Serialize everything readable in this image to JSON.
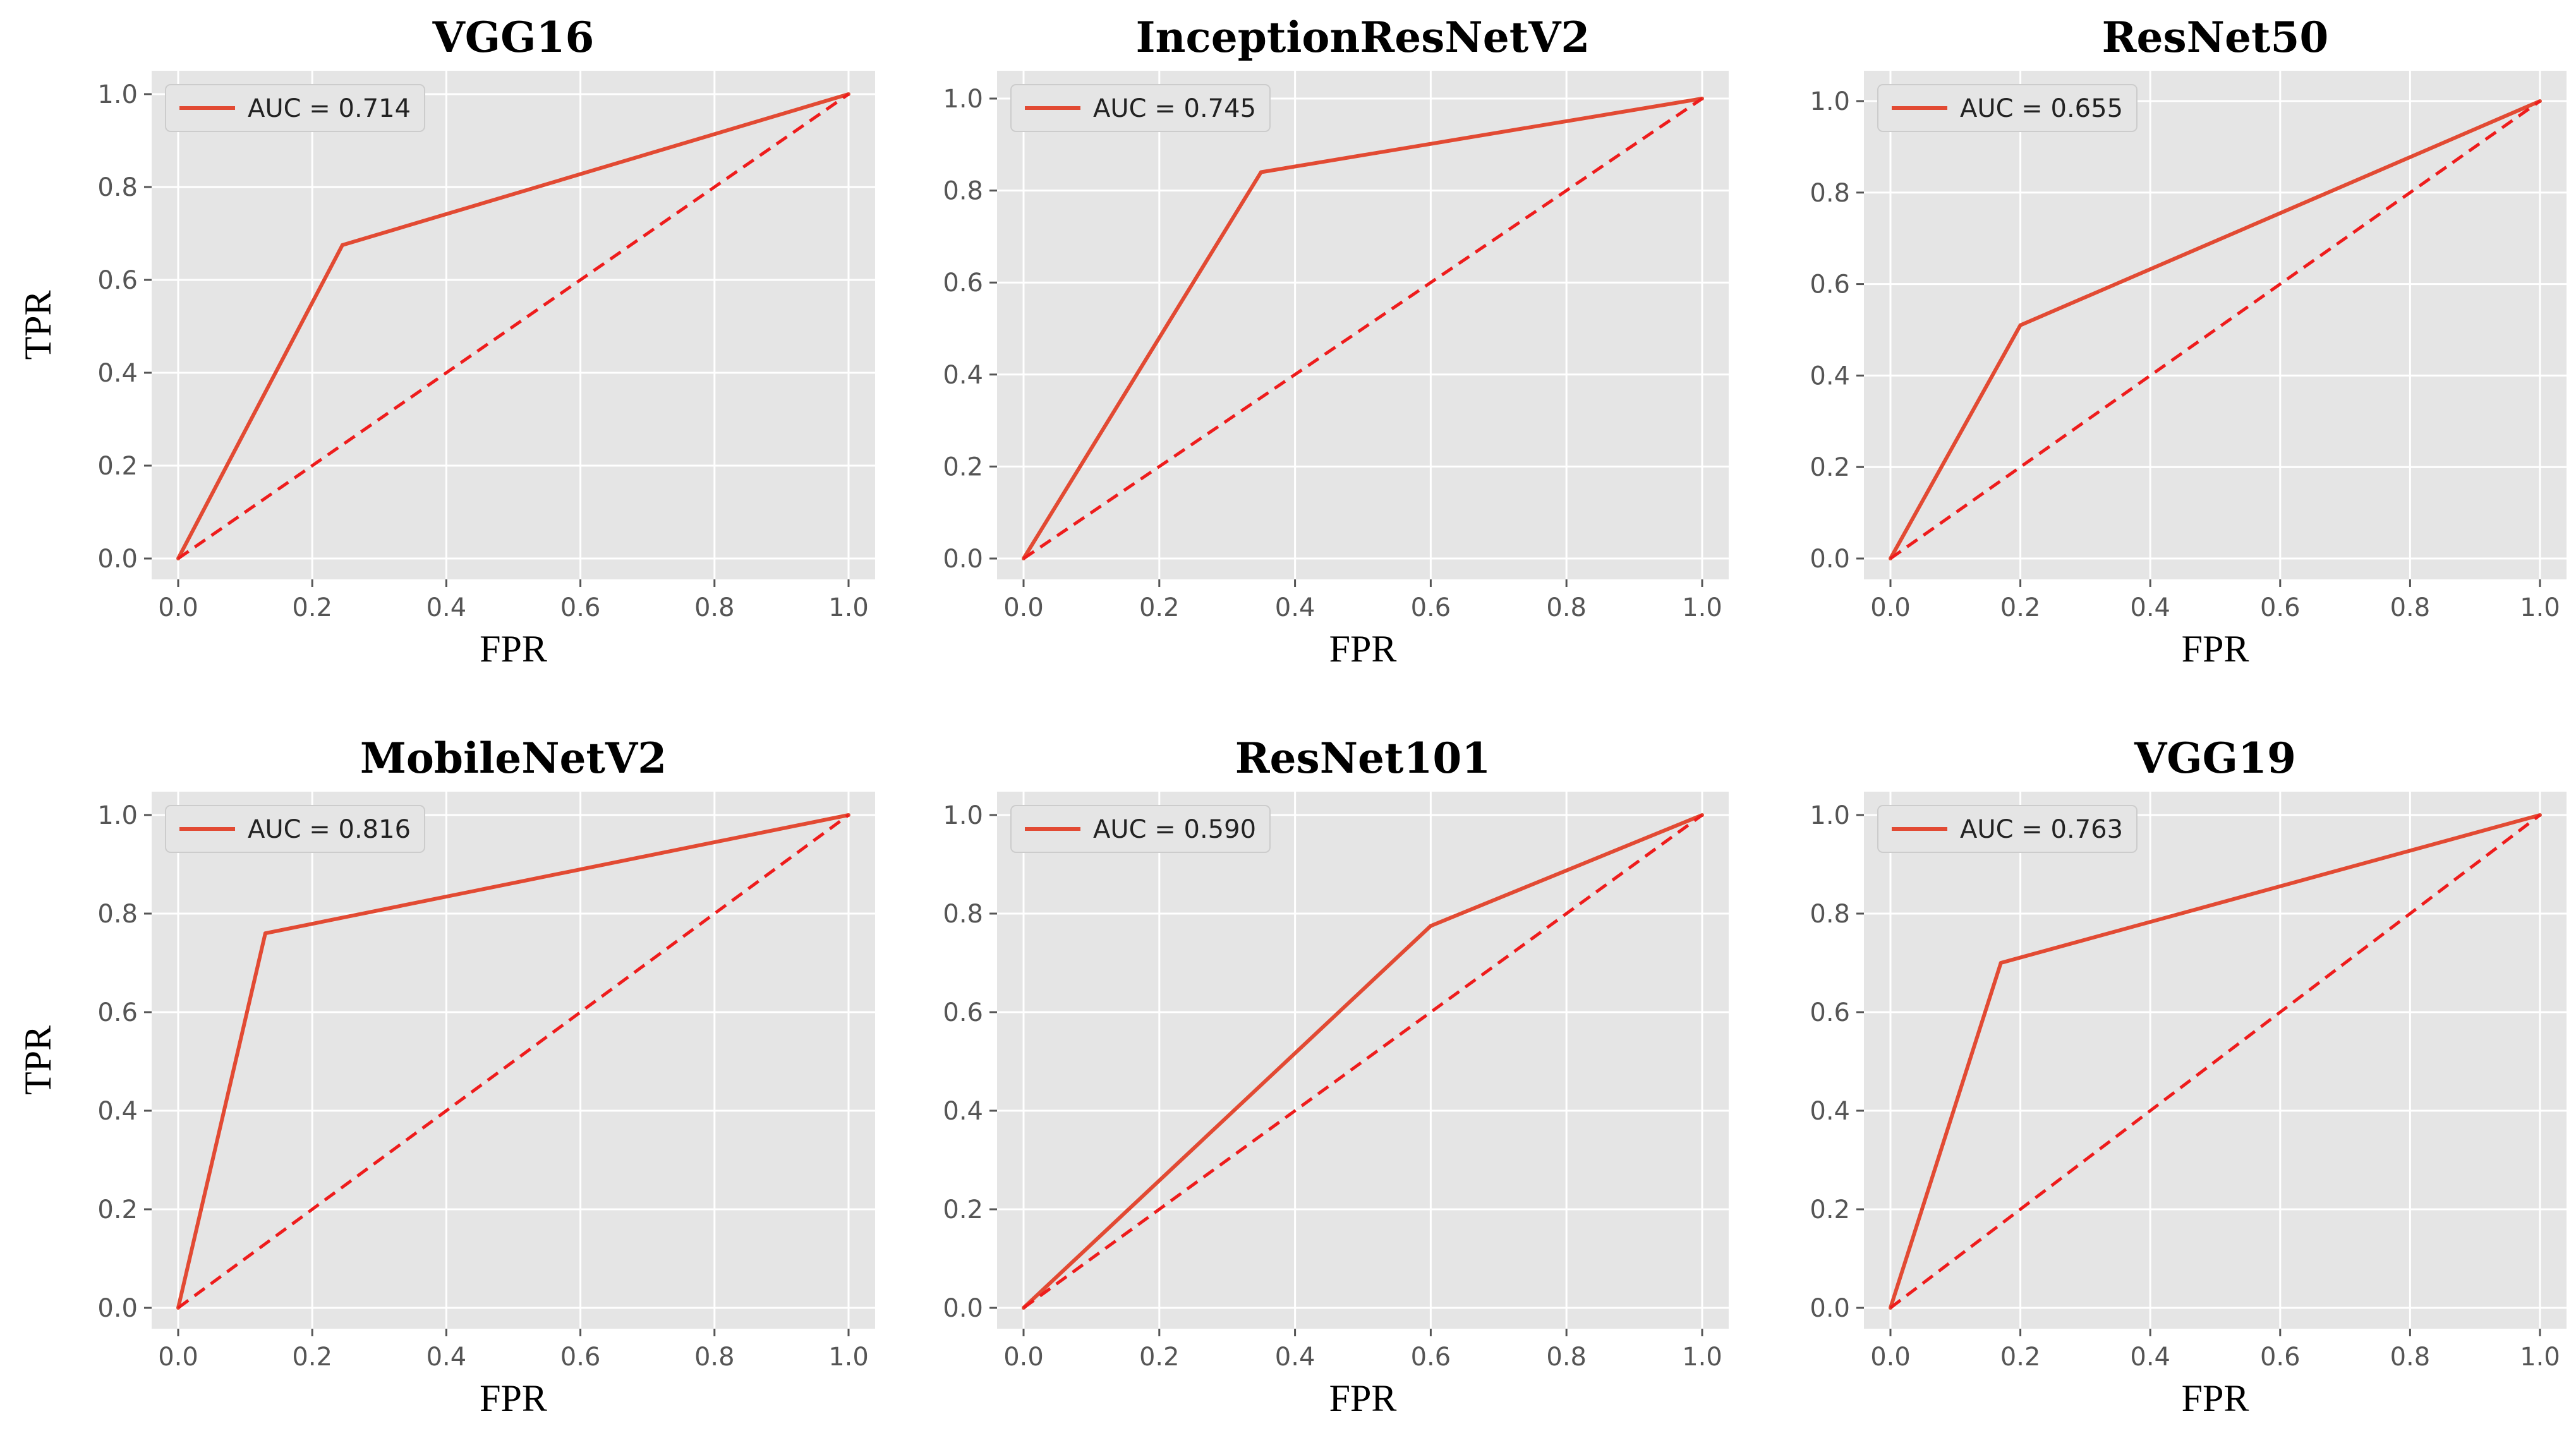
{
  "chart_data": [
    {
      "type": "line",
      "title": "VGG16",
      "xlabel": "FPR",
      "ylabel": "TPR",
      "xlim": [
        0,
        1
      ],
      "ylim": [
        0,
        1
      ],
      "xticks": [
        "0.0",
        "0.2",
        "0.4",
        "0.6",
        "0.8",
        "1.0"
      ],
      "yticks": [
        "0.0",
        "0.2",
        "0.4",
        "0.6",
        "0.8",
        "1.0"
      ],
      "series": [
        {
          "name": "AUC = 0.714",
          "x": [
            0,
            0.245,
            1
          ],
          "y": [
            0,
            0.675,
            1
          ]
        },
        {
          "name": "chance",
          "x": [
            0,
            1
          ],
          "y": [
            0,
            1
          ],
          "style": "dashed"
        }
      ],
      "legend": {
        "label": "AUC = 0.714",
        "position": "upper-left"
      }
    },
    {
      "type": "line",
      "title": "InceptionResNetV2",
      "xlabel": "FPR",
      "ylabel": "",
      "xlim": [
        0,
        1
      ],
      "ylim": [
        0,
        1
      ],
      "xticks": [
        "0.0",
        "0.2",
        "0.4",
        "0.6",
        "0.8",
        "1.0"
      ],
      "yticks": [
        "0.0",
        "0.2",
        "0.4",
        "0.6",
        "0.8",
        "1.0"
      ],
      "series": [
        {
          "name": "AUC = 0.745",
          "x": [
            0,
            0.35,
            1
          ],
          "y": [
            0,
            0.84,
            1
          ]
        },
        {
          "name": "chance",
          "x": [
            0,
            1
          ],
          "y": [
            0,
            1
          ],
          "style": "dashed"
        }
      ],
      "legend": {
        "label": "AUC = 0.745",
        "position": "upper-left"
      }
    },
    {
      "type": "line",
      "title": "ResNet50",
      "xlabel": "FPR",
      "ylabel": "",
      "xlim": [
        0,
        1
      ],
      "ylim": [
        0,
        1
      ],
      "xticks": [
        "0.0",
        "0.2",
        "0.4",
        "0.6",
        "0.8",
        "1.0"
      ],
      "yticks": [
        "0.0",
        "0.2",
        "0.4",
        "0.6",
        "0.8",
        "1.0"
      ],
      "series": [
        {
          "name": "AUC = 0.655",
          "x": [
            0,
            0.2,
            1
          ],
          "y": [
            0,
            0.51,
            1
          ]
        },
        {
          "name": "chance",
          "x": [
            0,
            1
          ],
          "y": [
            0,
            1
          ],
          "style": "dashed"
        }
      ],
      "legend": {
        "label": "AUC = 0.655",
        "position": "upper-left"
      }
    },
    {
      "type": "line",
      "title": "MobileNetV2",
      "xlabel": "FPR",
      "ylabel": "TPR",
      "xlim": [
        0,
        1
      ],
      "ylim": [
        0,
        1
      ],
      "xticks": [
        "0.0",
        "0.2",
        "0.4",
        "0.6",
        "0.8",
        "1.0"
      ],
      "yticks": [
        "0.0",
        "0.2",
        "0.4",
        "0.6",
        "0.8",
        "1.0"
      ],
      "series": [
        {
          "name": "AUC = 0.816",
          "x": [
            0,
            0.13,
            1
          ],
          "y": [
            0,
            0.76,
            1
          ]
        },
        {
          "name": "chance",
          "x": [
            0,
            1
          ],
          "y": [
            0,
            1
          ],
          "style": "dashed"
        }
      ],
      "legend": {
        "label": "AUC = 0.816",
        "position": "upper-left"
      }
    },
    {
      "type": "line",
      "title": "ResNet101",
      "xlabel": "FPR",
      "ylabel": "",
      "xlim": [
        0,
        1
      ],
      "ylim": [
        0,
        1
      ],
      "xticks": [
        "0.0",
        "0.2",
        "0.4",
        "0.6",
        "0.8",
        "1.0"
      ],
      "yticks": [
        "0.0",
        "0.2",
        "0.4",
        "0.6",
        "0.8",
        "1.0"
      ],
      "series": [
        {
          "name": "AUC = 0.590",
          "x": [
            0,
            0.6,
            1
          ],
          "y": [
            0,
            0.775,
            1
          ]
        },
        {
          "name": "chance",
          "x": [
            0,
            1
          ],
          "y": [
            0,
            1
          ],
          "style": "dashed"
        }
      ],
      "legend": {
        "label": "AUC = 0.590",
        "position": "upper-left"
      }
    },
    {
      "type": "line",
      "title": "VGG19",
      "xlabel": "FPR",
      "ylabel": "",
      "xlim": [
        0,
        1
      ],
      "ylim": [
        0,
        1
      ],
      "xticks": [
        "0.0",
        "0.2",
        "0.4",
        "0.6",
        "0.8",
        "1.0"
      ],
      "yticks": [
        "0.0",
        "0.2",
        "0.4",
        "0.6",
        "0.8",
        "1.0"
      ],
      "series": [
        {
          "name": "AUC = 0.763",
          "x": [
            0,
            0.17,
            1
          ],
          "y": [
            0,
            0.7,
            1
          ]
        },
        {
          "name": "chance",
          "x": [
            0,
            1
          ],
          "y": [
            0,
            1
          ],
          "style": "dashed"
        }
      ],
      "legend": {
        "label": "AUC = 0.763",
        "position": "upper-left"
      }
    }
  ]
}
